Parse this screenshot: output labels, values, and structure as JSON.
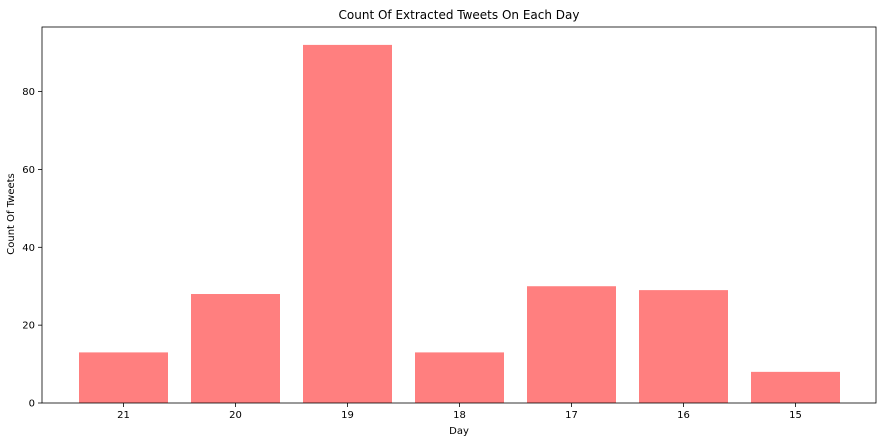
{
  "chart_data": {
    "type": "bar",
    "title": "Count Of Extracted Tweets On Each Day",
    "xlabel": "Day",
    "ylabel": "Count Of Tweets",
    "categories": [
      "21",
      "20",
      "19",
      "18",
      "17",
      "16",
      "15"
    ],
    "values": [
      13,
      28,
      92,
      13,
      30,
      29,
      8
    ],
    "ylim": [
      0,
      96.6
    ],
    "yticks": [
      "0",
      "20",
      "40",
      "60",
      "80"
    ],
    "grid": false,
    "bar_color": "#ff7f7f"
  }
}
